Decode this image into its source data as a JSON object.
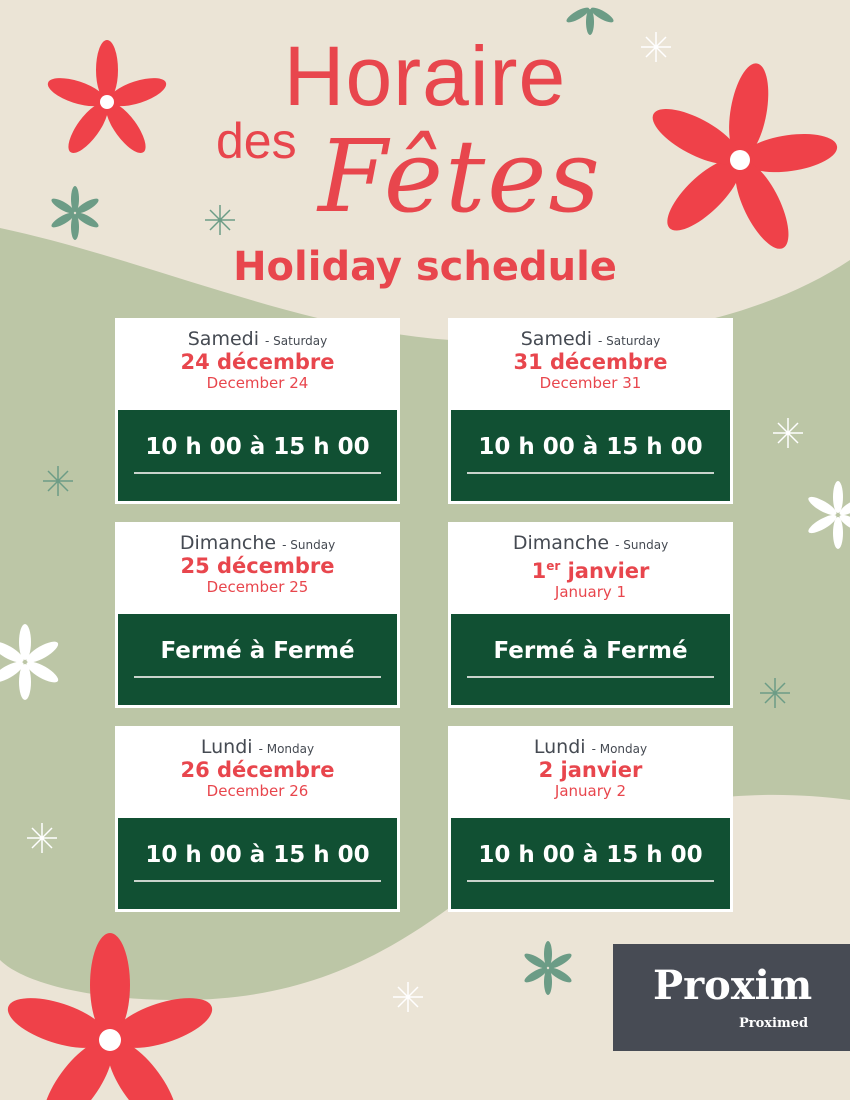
{
  "title": {
    "line1": "Horaire",
    "line2a": "des",
    "line2b": "Fêtes",
    "subtitle": "Holiday schedule"
  },
  "colors": {
    "red": "#e8464d",
    "green_dark": "#115033",
    "background": "#ebe4d6",
    "sage": "#bcc6a6",
    "logo_bg": "#474b54"
  },
  "days": [
    {
      "day_fr": "Samedi",
      "day_en": "- Saturday",
      "date_fr": "24 décembre",
      "date_fr_sup": "",
      "date_en": "December 24",
      "hours": "10 h 00 à 15 h 00"
    },
    {
      "day_fr": "Samedi",
      "day_en": "- Saturday",
      "date_fr": "31 décembre",
      "date_fr_sup": "",
      "date_en": "December 31",
      "hours": "10 h 00 à 15 h 00"
    },
    {
      "day_fr": "Dimanche",
      "day_en": "- Sunday",
      "date_fr": "25 décembre",
      "date_fr_sup": "",
      "date_en": "December 25",
      "hours": "Fermé à Fermé"
    },
    {
      "day_fr": "Dimanche",
      "day_en": "- Sunday",
      "date_fr": "1",
      "date_fr_sup": "er",
      "date_fr_rest": " janvier",
      "date_en": "January 1",
      "hours": "Fermé à Fermé"
    },
    {
      "day_fr": "Lundi",
      "day_en": "- Monday",
      "date_fr": "26 décembre",
      "date_fr_sup": "",
      "date_en": "December 26",
      "hours": "10 h 00 à 15 h 00"
    },
    {
      "day_fr": "Lundi",
      "day_en": "- Monday",
      "date_fr": "2 janvier",
      "date_fr_sup": "",
      "date_en": "January 2",
      "hours": "10 h 00 à 15 h 00"
    }
  ],
  "logo": {
    "brand": "Proxim",
    "sub": "Proximed"
  }
}
